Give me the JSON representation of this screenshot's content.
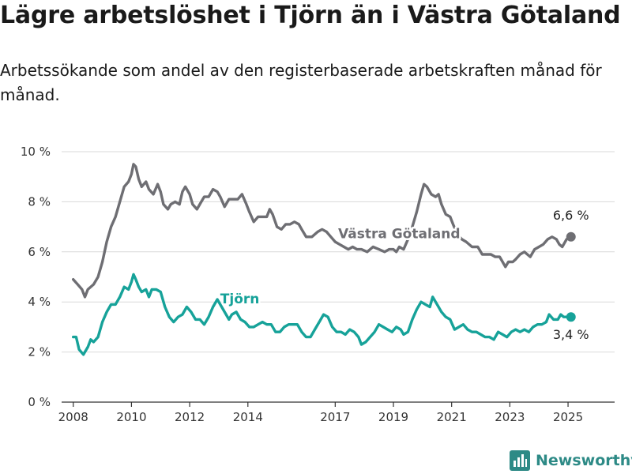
{
  "title": "Lägre arbetslöshet i Tjörn än i Västra Götaland",
  "subtitle": "Arbetssökande som andel av den registerbaserade arbetskraften månad för månad.",
  "brand": {
    "name": "Newsworthy"
  },
  "colors": {
    "vastra_gotaland": "#6e6e73",
    "tjorn": "#16a299",
    "grid": "#d9d9d9",
    "brand": "#2d8a86"
  },
  "chart_data": {
    "type": "line",
    "title": "Lägre arbetslöshet i Tjörn än i Västra Götaland",
    "subtitle": "Arbetssökande som andel av den registerbaserade arbetskraften månad för månad.",
    "xlabel": "",
    "ylabel": "",
    "x_unit": "year",
    "xlim": [
      2007.6,
      2026.6
    ],
    "ylim": [
      0,
      10
    ],
    "y_ticks": [
      0,
      2,
      4,
      6,
      8,
      10
    ],
    "y_tick_labels": [
      "0 %",
      "2 %",
      "4 %",
      "6 %",
      "8 %",
      "10 %"
    ],
    "x_ticks": [
      2008,
      2010,
      2012,
      2014,
      2017,
      2019,
      2021,
      2023,
      2025
    ],
    "x_tick_labels": [
      "2008",
      "2010",
      "2012",
      "2014",
      "2017",
      "2019",
      "2021",
      "2023",
      "2025"
    ],
    "grid": "horizontal",
    "legend": "inline labels",
    "series": [
      {
        "name": "Västra Götaland",
        "color_key": "vastra_gotaland",
        "end_label": "6,6 %",
        "points": [
          [
            2008.0,
            4.9
          ],
          [
            2008.15,
            4.7
          ],
          [
            2008.3,
            4.5
          ],
          [
            2008.4,
            4.2
          ],
          [
            2008.5,
            4.5
          ],
          [
            2008.7,
            4.7
          ],
          [
            2008.85,
            5.0
          ],
          [
            2009.0,
            5.6
          ],
          [
            2009.15,
            6.4
          ],
          [
            2009.3,
            7.0
          ],
          [
            2009.45,
            7.4
          ],
          [
            2009.6,
            8.0
          ],
          [
            2009.75,
            8.6
          ],
          [
            2009.9,
            8.8
          ],
          [
            2010.0,
            9.1
          ],
          [
            2010.07,
            9.5
          ],
          [
            2010.15,
            9.4
          ],
          [
            2010.25,
            8.9
          ],
          [
            2010.35,
            8.6
          ],
          [
            2010.5,
            8.8
          ],
          [
            2010.6,
            8.5
          ],
          [
            2010.75,
            8.3
          ],
          [
            2010.9,
            8.7
          ],
          [
            2011.0,
            8.4
          ],
          [
            2011.1,
            7.9
          ],
          [
            2011.25,
            7.7
          ],
          [
            2011.35,
            7.9
          ],
          [
            2011.5,
            8.0
          ],
          [
            2011.65,
            7.9
          ],
          [
            2011.75,
            8.4
          ],
          [
            2011.85,
            8.6
          ],
          [
            2012.0,
            8.3
          ],
          [
            2012.1,
            7.9
          ],
          [
            2012.25,
            7.7
          ],
          [
            2012.4,
            8.0
          ],
          [
            2012.5,
            8.2
          ],
          [
            2012.65,
            8.2
          ],
          [
            2012.8,
            8.5
          ],
          [
            2012.95,
            8.4
          ],
          [
            2013.05,
            8.2
          ],
          [
            2013.2,
            7.8
          ],
          [
            2013.35,
            8.1
          ],
          [
            2013.5,
            8.1
          ],
          [
            2013.65,
            8.1
          ],
          [
            2013.8,
            8.3
          ],
          [
            2013.95,
            7.9
          ],
          [
            2014.05,
            7.6
          ],
          [
            2014.2,
            7.2
          ],
          [
            2014.35,
            7.4
          ],
          [
            2014.5,
            7.4
          ],
          [
            2014.65,
            7.4
          ],
          [
            2014.75,
            7.7
          ],
          [
            2014.85,
            7.5
          ],
          [
            2015.0,
            7.0
          ],
          [
            2015.15,
            6.9
          ],
          [
            2015.3,
            7.1
          ],
          [
            2015.45,
            7.1
          ],
          [
            2015.6,
            7.2
          ],
          [
            2015.75,
            7.1
          ],
          [
            2015.85,
            6.9
          ],
          [
            2016.0,
            6.6
          ],
          [
            2016.2,
            6.6
          ],
          [
            2016.4,
            6.8
          ],
          [
            2016.55,
            6.9
          ],
          [
            2016.7,
            6.8
          ],
          [
            2016.85,
            6.6
          ],
          [
            2017.0,
            6.4
          ],
          [
            2017.15,
            6.3
          ],
          [
            2017.3,
            6.2
          ],
          [
            2017.45,
            6.1
          ],
          [
            2017.6,
            6.2
          ],
          [
            2017.75,
            6.1
          ],
          [
            2017.9,
            6.1
          ],
          [
            2018.1,
            6.0
          ],
          [
            2018.3,
            6.2
          ],
          [
            2018.5,
            6.1
          ],
          [
            2018.7,
            6.0
          ],
          [
            2018.85,
            6.1
          ],
          [
            2019.0,
            6.1
          ],
          [
            2019.1,
            6.0
          ],
          [
            2019.2,
            6.2
          ],
          [
            2019.35,
            6.1
          ],
          [
            2019.5,
            6.5
          ],
          [
            2019.65,
            7.0
          ],
          [
            2019.8,
            7.6
          ],
          [
            2019.95,
            8.3
          ],
          [
            2020.05,
            8.7
          ],
          [
            2020.15,
            8.6
          ],
          [
            2020.3,
            8.3
          ],
          [
            2020.45,
            8.2
          ],
          [
            2020.55,
            8.3
          ],
          [
            2020.65,
            7.9
          ],
          [
            2020.8,
            7.5
          ],
          [
            2020.95,
            7.4
          ],
          [
            2021.05,
            7.1
          ],
          [
            2021.2,
            6.7
          ],
          [
            2021.35,
            6.5
          ],
          [
            2021.5,
            6.4
          ],
          [
            2021.7,
            6.2
          ],
          [
            2021.9,
            6.2
          ],
          [
            2022.05,
            5.9
          ],
          [
            2022.2,
            5.9
          ],
          [
            2022.35,
            5.9
          ],
          [
            2022.5,
            5.8
          ],
          [
            2022.65,
            5.8
          ],
          [
            2022.75,
            5.6
          ],
          [
            2022.85,
            5.4
          ],
          [
            2022.95,
            5.6
          ],
          [
            2023.1,
            5.6
          ],
          [
            2023.2,
            5.7
          ],
          [
            2023.35,
            5.9
          ],
          [
            2023.5,
            6.0
          ],
          [
            2023.6,
            5.9
          ],
          [
            2023.7,
            5.8
          ],
          [
            2023.85,
            6.1
          ],
          [
            2024.0,
            6.2
          ],
          [
            2024.15,
            6.3
          ],
          [
            2024.3,
            6.5
          ],
          [
            2024.45,
            6.6
          ],
          [
            2024.6,
            6.5
          ],
          [
            2024.7,
            6.3
          ],
          [
            2024.8,
            6.2
          ],
          [
            2024.95,
            6.5
          ],
          [
            2025.1,
            6.6
          ]
        ]
      },
      {
        "name": "Tjörn",
        "color_key": "tjorn",
        "end_label": "3,4 %",
        "points": [
          [
            2008.0,
            2.6
          ],
          [
            2008.1,
            2.6
          ],
          [
            2008.2,
            2.1
          ],
          [
            2008.35,
            1.9
          ],
          [
            2008.5,
            2.2
          ],
          [
            2008.6,
            2.5
          ],
          [
            2008.7,
            2.4
          ],
          [
            2008.85,
            2.6
          ],
          [
            2009.0,
            3.2
          ],
          [
            2009.15,
            3.6
          ],
          [
            2009.3,
            3.9
          ],
          [
            2009.45,
            3.9
          ],
          [
            2009.6,
            4.2
          ],
          [
            2009.75,
            4.6
          ],
          [
            2009.9,
            4.5
          ],
          [
            2010.0,
            4.8
          ],
          [
            2010.07,
            5.1
          ],
          [
            2010.15,
            4.9
          ],
          [
            2010.25,
            4.6
          ],
          [
            2010.35,
            4.4
          ],
          [
            2010.5,
            4.5
          ],
          [
            2010.6,
            4.2
          ],
          [
            2010.7,
            4.5
          ],
          [
            2010.85,
            4.5
          ],
          [
            2011.0,
            4.4
          ],
          [
            2011.15,
            3.8
          ],
          [
            2011.3,
            3.4
          ],
          [
            2011.45,
            3.2
          ],
          [
            2011.6,
            3.4
          ],
          [
            2011.75,
            3.5
          ],
          [
            2011.9,
            3.8
          ],
          [
            2012.05,
            3.6
          ],
          [
            2012.2,
            3.3
          ],
          [
            2012.35,
            3.3
          ],
          [
            2012.5,
            3.1
          ],
          [
            2012.65,
            3.4
          ],
          [
            2012.8,
            3.8
          ],
          [
            2012.95,
            4.1
          ],
          [
            2013.05,
            3.9
          ],
          [
            2013.2,
            3.6
          ],
          [
            2013.35,
            3.3
          ],
          [
            2013.45,
            3.5
          ],
          [
            2013.6,
            3.6
          ],
          [
            2013.75,
            3.3
          ],
          [
            2013.9,
            3.2
          ],
          [
            2014.05,
            3.0
          ],
          [
            2014.2,
            3.0
          ],
          [
            2014.35,
            3.1
          ],
          [
            2014.5,
            3.2
          ],
          [
            2014.65,
            3.1
          ],
          [
            2014.8,
            3.1
          ],
          [
            2014.95,
            2.8
          ],
          [
            2015.1,
            2.8
          ],
          [
            2015.25,
            3.0
          ],
          [
            2015.4,
            3.1
          ],
          [
            2015.55,
            3.1
          ],
          [
            2015.7,
            3.1
          ],
          [
            2015.85,
            2.8
          ],
          [
            2016.0,
            2.6
          ],
          [
            2016.15,
            2.6
          ],
          [
            2016.3,
            2.9
          ],
          [
            2016.45,
            3.2
          ],
          [
            2016.6,
            3.5
          ],
          [
            2016.75,
            3.4
          ],
          [
            2016.9,
            3.0
          ],
          [
            2017.05,
            2.8
          ],
          [
            2017.2,
            2.8
          ],
          [
            2017.35,
            2.7
          ],
          [
            2017.5,
            2.9
          ],
          [
            2017.65,
            2.8
          ],
          [
            2017.8,
            2.6
          ],
          [
            2017.9,
            2.3
          ],
          [
            2018.05,
            2.4
          ],
          [
            2018.2,
            2.6
          ],
          [
            2018.35,
            2.8
          ],
          [
            2018.5,
            3.1
          ],
          [
            2018.65,
            3.0
          ],
          [
            2018.8,
            2.9
          ],
          [
            2018.95,
            2.8
          ],
          [
            2019.1,
            3.0
          ],
          [
            2019.25,
            2.9
          ],
          [
            2019.35,
            2.7
          ],
          [
            2019.5,
            2.8
          ],
          [
            2019.65,
            3.3
          ],
          [
            2019.8,
            3.7
          ],
          [
            2019.95,
            4.0
          ],
          [
            2020.1,
            3.9
          ],
          [
            2020.25,
            3.8
          ],
          [
            2020.35,
            4.2
          ],
          [
            2020.5,
            3.9
          ],
          [
            2020.65,
            3.6
          ],
          [
            2020.8,
            3.4
          ],
          [
            2020.95,
            3.3
          ],
          [
            2021.1,
            2.9
          ],
          [
            2021.25,
            3.0
          ],
          [
            2021.4,
            3.1
          ],
          [
            2021.55,
            2.9
          ],
          [
            2021.7,
            2.8
          ],
          [
            2021.85,
            2.8
          ],
          [
            2022.0,
            2.7
          ],
          [
            2022.15,
            2.6
          ],
          [
            2022.3,
            2.6
          ],
          [
            2022.45,
            2.5
          ],
          [
            2022.6,
            2.8
          ],
          [
            2022.75,
            2.7
          ],
          [
            2022.9,
            2.6
          ],
          [
            2023.05,
            2.8
          ],
          [
            2023.2,
            2.9
          ],
          [
            2023.35,
            2.8
          ],
          [
            2023.5,
            2.9
          ],
          [
            2023.65,
            2.8
          ],
          [
            2023.8,
            3.0
          ],
          [
            2023.95,
            3.1
          ],
          [
            2024.1,
            3.1
          ],
          [
            2024.25,
            3.2
          ],
          [
            2024.35,
            3.5
          ],
          [
            2024.5,
            3.3
          ],
          [
            2024.65,
            3.3
          ],
          [
            2024.75,
            3.5
          ],
          [
            2024.85,
            3.4
          ],
          [
            2025.0,
            3.4
          ],
          [
            2025.1,
            3.4
          ]
        ]
      }
    ]
  }
}
